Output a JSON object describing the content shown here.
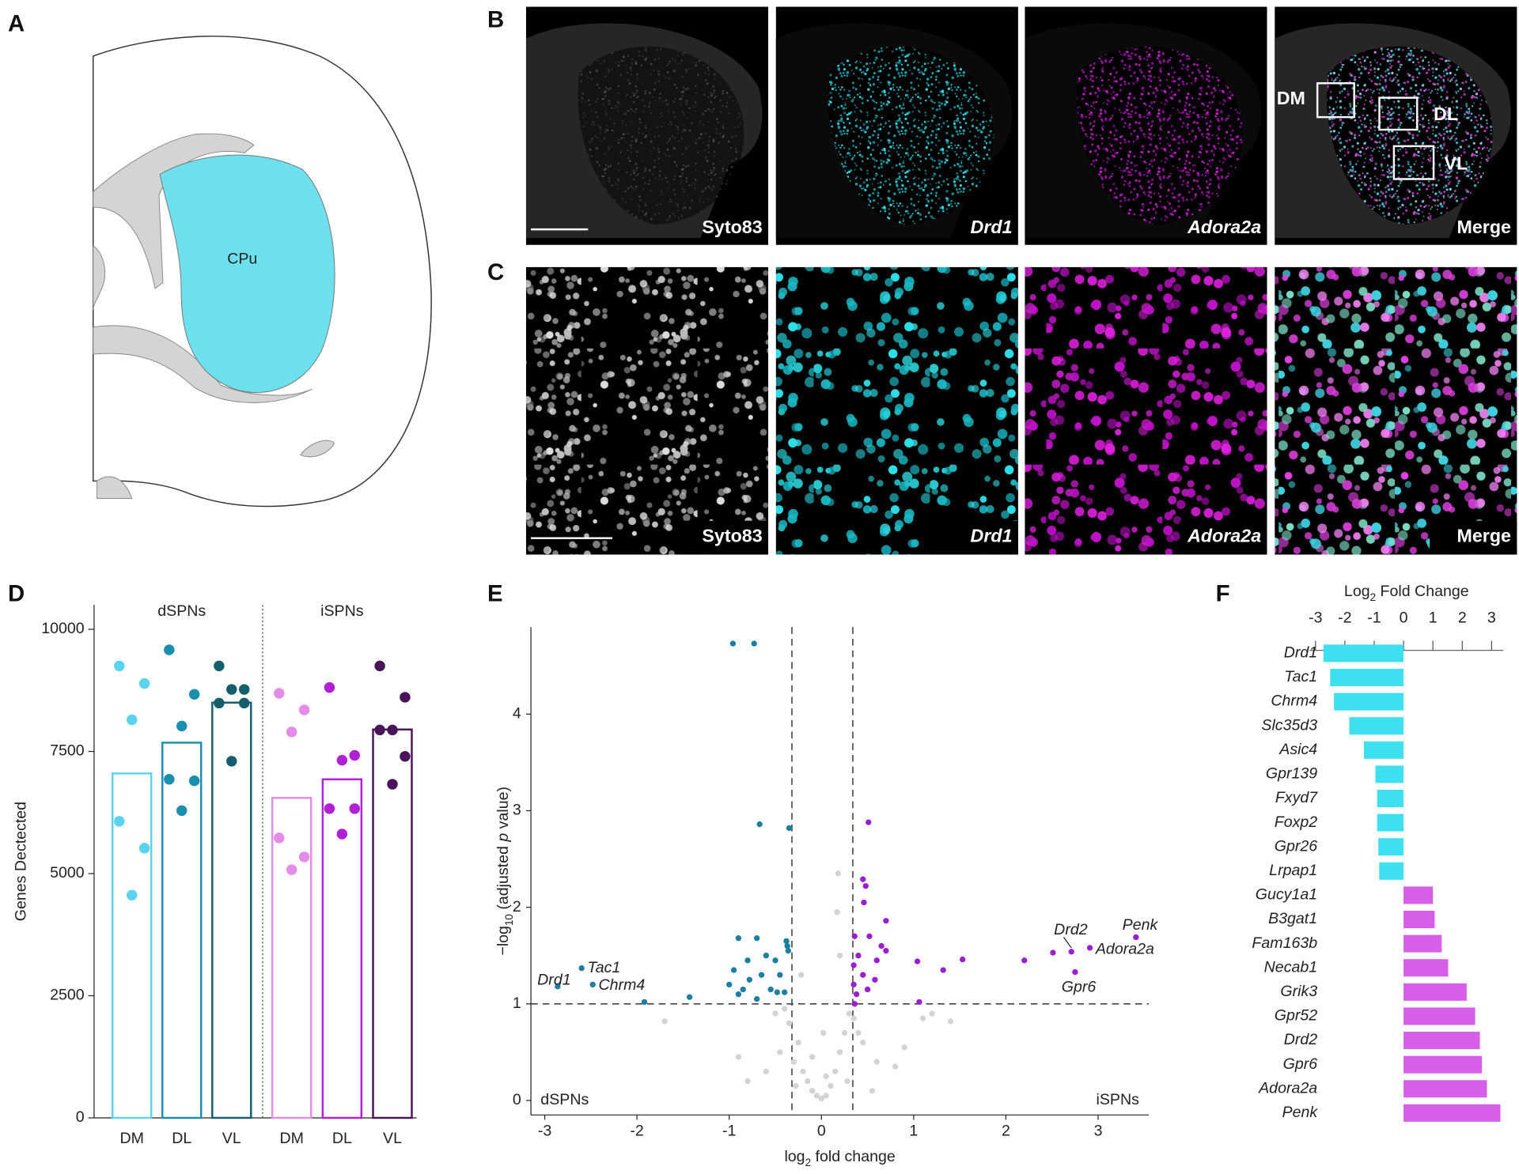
{
  "panels": {
    "labels": [
      "A",
      "B",
      "C",
      "D",
      "E",
      "F"
    ],
    "A": {
      "region": "CPu"
    },
    "B": {
      "images": [
        "Syto83",
        "Drd1",
        "Adora2a",
        "Merge"
      ],
      "regions": [
        "DM",
        "DL",
        "VL"
      ]
    },
    "C": {
      "images": [
        "Syto83",
        "Drd1",
        "Adora2a",
        "Merge"
      ]
    }
  },
  "chart_data": [
    {
      "type": "bar_dot",
      "ylabel": "Genes Dectected",
      "groups": [
        "dSPNs",
        "iSPNs"
      ],
      "categories": [
        "DM",
        "DL",
        "VL",
        "DM",
        "DL",
        "VL"
      ],
      "values": [
        7050,
        7680,
        8500,
        6550,
        6930,
        7950
      ],
      "colors": [
        "#5bd3ee",
        "#1b8fb0",
        "#155e6e",
        "#e58be8",
        "#b020d4",
        "#4a1459"
      ],
      "points": [
        [
          9250,
          8890,
          8150,
          6070,
          5520,
          4560
        ],
        [
          9580,
          8670,
          8020,
          6930,
          6900,
          6290
        ],
        [
          9250,
          8770,
          8770,
          8490,
          8490,
          7300
        ],
        [
          8690,
          8350,
          7900,
          5730,
          5340,
          5080
        ],
        [
          8810,
          7420,
          7320,
          6330,
          6330,
          5810
        ],
        [
          9250,
          8610,
          7940,
          7940,
          7400,
          6830
        ]
      ],
      "ylim": [
        0,
        10500
      ],
      "yticks": [
        0,
        2500,
        5000,
        7500,
        10000
      ]
    },
    {
      "type": "scatter",
      "xlabel": [
        "log",
        "2",
        " fold change"
      ],
      "ylabel": [
        "−log",
        "10",
        " (adjusted ",
        "p",
        " value)"
      ],
      "annotations": [
        {
          "text": "dSPNs",
          "color": "#1a7fa3"
        },
        {
          "text": "iSPNs",
          "color": "#9b1fd1"
        }
      ],
      "thresholds": {
        "x": [
          -0.32,
          0.34
        ],
        "y": 1
      },
      "xlim": [
        -3.15,
        3.55
      ],
      "ylim": [
        -0.15,
        4.9
      ],
      "xticks": [
        -3,
        -2,
        -1,
        0,
        1,
        2,
        3
      ],
      "yticks": [
        0,
        1,
        2,
        3,
        4
      ],
      "series": [
        {
          "color": "#d3d3d3",
          "x": [
            -0.3,
            -0.25,
            -0.2,
            -0.15,
            -0.1,
            -0.05,
            0,
            0.05,
            0.1,
            0.15,
            0.2,
            0.25,
            0.3,
            -0.35,
            0.35,
            -0.45,
            0.45,
            -0.6,
            0.6,
            -0.8,
            0.8,
            -1.7,
            1.1,
            1.2,
            1.4,
            0.05,
            -0.1,
            0.2,
            -0.4,
            0.4,
            0.17,
            -0.22,
            0.18,
            -0.28,
            0.28,
            -0.5,
            0.55,
            0.9,
            -0.9,
            0.02
          ],
          "y": [
            0.4,
            0.6,
            0.3,
            0.2,
            0.1,
            0.05,
            0.02,
            0.05,
            0.15,
            0.3,
            0.5,
            0.7,
            0.9,
            0.8,
            0.85,
            0.5,
            0.6,
            0.3,
            0.4,
            0.2,
            0.35,
            0.82,
            0.85,
            0.9,
            0.82,
            0.25,
            0.45,
            1.5,
            0.95,
            0.7,
            1.95,
            1.3,
            2.35,
            0.15,
            0.2,
            0.9,
            0.1,
            0.55,
            0.45,
            0.7
          ]
        },
        {
          "color": "#1a7fa3",
          "x": [
            -2.86,
            -2.6,
            -2.48,
            -1.92,
            -1.43,
            -0.96,
            -0.73,
            -0.67,
            -0.35,
            -0.9,
            -0.7,
            -0.38,
            -0.37,
            -0.36,
            -0.6,
            -0.5,
            -0.8,
            -0.95,
            -0.65,
            -0.45,
            -1.0,
            -0.85,
            -0.55,
            -0.4,
            -0.7,
            -0.9,
            -0.48,
            -0.78
          ],
          "y": [
            1.18,
            1.37,
            1.2,
            1.02,
            1.07,
            4.73,
            4.73,
            2.86,
            2.82,
            1.68,
            1.68,
            1.65,
            1.6,
            1.55,
            1.5,
            1.45,
            1.45,
            1.35,
            1.3,
            1.3,
            1.2,
            1.15,
            1.15,
            1.12,
            1.05,
            1.1,
            1.12,
            1.25
          ],
          "labels": [
            "Drd1",
            "Tac1",
            "Chrm4",
            null,
            null,
            null,
            null,
            null,
            null,
            null,
            null,
            null,
            null,
            null,
            null,
            null,
            null,
            null,
            null,
            null,
            null,
            null,
            null,
            null,
            null,
            null,
            null,
            null
          ]
        },
        {
          "color": "#9b1fd1",
          "x": [
            0.51,
            0.45,
            0.48,
            0.46,
            0.7,
            0.36,
            0.52,
            0.65,
            0.7,
            0.4,
            0.35,
            0.6,
            0.45,
            0.58,
            0.35,
            0.38,
            0.5,
            0.36,
            1.04,
            1.32,
            1.53,
            1.06,
            2.2,
            2.51,
            2.71,
            3.41,
            2.91,
            2.75
          ],
          "y": [
            2.88,
            2.29,
            2.22,
            2.05,
            1.86,
            1.7,
            1.7,
            1.6,
            1.55,
            1.5,
            1.4,
            1.45,
            1.3,
            1.25,
            1.2,
            1.1,
            1.15,
            1.0,
            1.44,
            1.35,
            1.46,
            1.02,
            1.45,
            1.53,
            1.54,
            1.69,
            1.58,
            1.33
          ],
          "labels": [
            null,
            null,
            null,
            null,
            null,
            null,
            null,
            null,
            null,
            null,
            null,
            null,
            null,
            null,
            null,
            null,
            null,
            null,
            null,
            null,
            null,
            null,
            null,
            null,
            "Drd2",
            "Penk",
            "Adora2a",
            "Gpr6"
          ]
        }
      ]
    },
    {
      "type": "barh",
      "xlabel": [
        "Log",
        "2",
        " Fold Change"
      ],
      "categories": [
        "Drd1",
        "Tac1",
        "Chrm4",
        "Slc35d3",
        "Asic4",
        "Gpr139",
        "Fxyd7",
        "Foxp2",
        "Gpr26",
        "Lrpap1",
        "Gucy1a1",
        "B3gat1",
        "Fam163b",
        "Necab1",
        "Grik3",
        "Gpr52",
        "Drd2",
        "Gpr6",
        "Adora2a",
        "Penk"
      ],
      "values": [
        -2.73,
        -2.5,
        -2.37,
        -1.85,
        -1.35,
        -0.96,
        -0.9,
        -0.9,
        -0.86,
        -0.83,
        1.0,
        1.06,
        1.3,
        1.52,
        2.15,
        2.44,
        2.6,
        2.67,
        2.84,
        3.3
      ],
      "colors": [
        "#3de0ee",
        "#3de0ee",
        "#3de0ee",
        "#3de0ee",
        "#3de0ee",
        "#3de0ee",
        "#3de0ee",
        "#3de0ee",
        "#3de0ee",
        "#3de0ee",
        "#d65ee8",
        "#d65ee8",
        "#d65ee8",
        "#d65ee8",
        "#d65ee8",
        "#d65ee8",
        "#d65ee8",
        "#d65ee8",
        "#d65ee8",
        "#d65ee8"
      ],
      "xlim": [
        -3.2,
        3.4
      ],
      "xticks": [
        -3,
        -2,
        -1,
        0,
        1,
        2,
        3
      ]
    }
  ]
}
